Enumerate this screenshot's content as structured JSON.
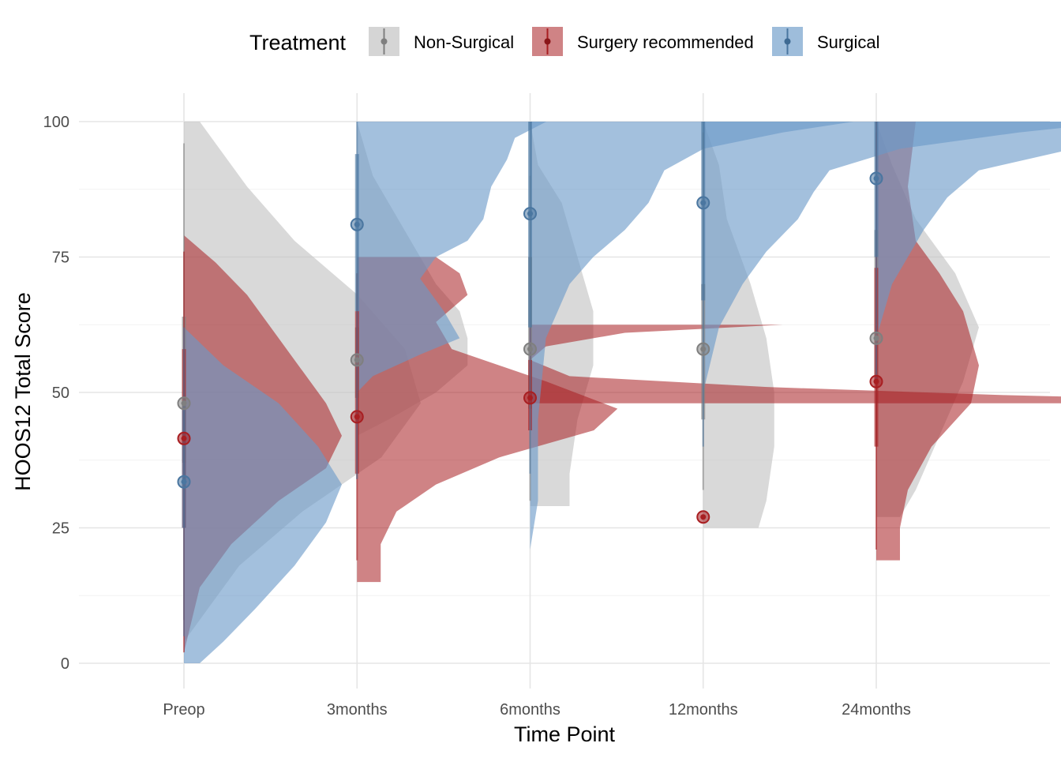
{
  "chart_data": {
    "type": "half-violin with point-interval",
    "xlabel": "Time Point",
    "ylabel": "HOOS12 Total Score",
    "categories": [
      "Preop",
      "3months",
      "6months",
      "12months",
      "24months"
    ],
    "ylim": [
      -4,
      105
    ],
    "yticks": [
      0,
      25,
      50,
      75,
      100
    ],
    "grid": true,
    "legend": {
      "title": "Treatment",
      "position": "top",
      "entries": [
        "Non-Surgical",
        "Surgery recommended",
        "Surgical"
      ]
    },
    "series": [
      {
        "name": "Non-Surgical",
        "color": "#bfbfbf",
        "point_color": "#7f7f7f",
        "medians": [
          48,
          56,
          58,
          58,
          60
        ],
        "interval_66": [
          [
            37,
            64
          ],
          [
            49,
            62
          ],
          [
            47,
            75
          ],
          [
            45,
            70
          ],
          [
            52,
            80
          ]
        ],
        "interval_95": [
          [
            8,
            96
          ],
          [
            34,
            72
          ],
          [
            30,
            90
          ],
          [
            32,
            98
          ],
          [
            40,
            98
          ]
        ],
        "density": [
          [
            [
              100,
              0.02
            ],
            [
              96,
              0.04
            ],
            [
              88,
              0.08
            ],
            [
              78,
              0.14
            ],
            [
              68,
              0.22
            ],
            [
              58,
              0.28
            ],
            [
              48,
              0.3
            ],
            [
              38,
              0.25
            ],
            [
              28,
              0.15
            ],
            [
              18,
              0.07
            ],
            [
              8,
              0.02
            ],
            [
              4,
              0
            ]
          ],
          [
            [
              100,
              0
            ],
            [
              90,
              0.02
            ],
            [
              80,
              0.06
            ],
            [
              70,
              0.1
            ],
            [
              65,
              0.13
            ],
            [
              60,
              0.14
            ],
            [
              55,
              0.14
            ],
            [
              50,
              0.1
            ],
            [
              45,
              0.04
            ],
            [
              42,
              0
            ]
          ],
          [
            [
              100,
              0
            ],
            [
              92,
              0.01
            ],
            [
              85,
              0.04
            ],
            [
              75,
              0.06
            ],
            [
              65,
              0.08
            ],
            [
              55,
              0.08
            ],
            [
              45,
              0.06
            ],
            [
              35,
              0.05
            ],
            [
              29,
              0.05
            ]
          ],
          [
            [
              100,
              0
            ],
            [
              92,
              0.02
            ],
            [
              82,
              0.03
            ],
            [
              70,
              0.06
            ],
            [
              60,
              0.08
            ],
            [
              50,
              0.09
            ],
            [
              40,
              0.09
            ],
            [
              30,
              0.08
            ],
            [
              25,
              0.07
            ]
          ],
          [
            [
              100,
              0
            ],
            [
              92,
              0.02
            ],
            [
              82,
              0.05
            ],
            [
              72,
              0.1
            ],
            [
              62,
              0.13
            ],
            [
              52,
              0.11
            ],
            [
              42,
              0.08
            ],
            [
              32,
              0.05
            ],
            [
              27,
              0.03
            ]
          ]
        ]
      },
      {
        "name": "Surgery recommended",
        "color": "#a81e21",
        "point_color": "#a81e21",
        "medians": [
          41.5,
          45.5,
          49,
          27,
          52
        ],
        "interval_66": [
          [
            25,
            58
          ],
          [
            35,
            65
          ],
          [
            43,
            56
          ],
          [
            27,
            27
          ],
          [
            40,
            73
          ]
        ],
        "interval_95": [
          [
            2,
            76
          ],
          [
            19,
            72
          ],
          [
            48,
            62
          ],
          [
            27,
            27
          ],
          [
            21,
            100
          ]
        ],
        "density": [
          [
            [
              79,
              0
            ],
            [
              74,
              0.04
            ],
            [
              68,
              0.08
            ],
            [
              60,
              0.12
            ],
            [
              54,
              0.15
            ],
            [
              48,
              0.18
            ],
            [
              42,
              0.2
            ],
            [
              36,
              0.18
            ],
            [
              30,
              0.12
            ],
            [
              22,
              0.06
            ],
            [
              14,
              0.02
            ],
            [
              2,
              0
            ]
          ],
          [
            [
              75,
              0.1
            ],
            [
              72,
              0.13
            ],
            [
              68,
              0.14
            ],
            [
              63,
              0.1
            ],
            [
              58,
              0.12
            ],
            [
              52,
              0.24
            ],
            [
              47,
              0.33
            ],
            [
              43,
              0.3
            ],
            [
              38,
              0.18
            ],
            [
              33,
              0.1
            ],
            [
              28,
              0.05
            ],
            [
              22,
              0.03
            ],
            [
              15,
              0.03
            ]
          ],
          [
            [
              62.5,
              0.32
            ],
            [
              61,
              0.12
            ],
            [
              58.5,
              0.02
            ],
            [
              56,
              0
            ],
            [
              53,
              0.05
            ],
            [
              51,
              0.3
            ],
            [
              49.5,
              0.6
            ],
            [
              48.5,
              0.9
            ],
            [
              48,
              0.9
            ],
            [
              48,
              0
            ]
          ],
          [],
          [
            [
              100,
              0.05
            ],
            [
              88,
              0.04
            ],
            [
              78,
              0.05
            ],
            [
              72,
              0.08
            ],
            [
              65,
              0.11
            ],
            [
              55,
              0.13
            ],
            [
              48,
              0.12
            ],
            [
              40,
              0.07
            ],
            [
              32,
              0.04
            ],
            [
              25,
              0.03
            ],
            [
              19,
              0.03
            ]
          ]
        ]
      },
      {
        "name": "Surgical",
        "color": "#6a9ac8",
        "point_color": "#4a76a0",
        "medians": [
          33.5,
          81,
          83,
          85,
          89.5
        ],
        "interval_66": [
          [
            25,
            48
          ],
          [
            65,
            94
          ],
          [
            62,
            100
          ],
          [
            67,
            100
          ],
          [
            75,
            100
          ]
        ],
        "interval_95": [
          [
            5,
            62
          ],
          [
            34,
            100
          ],
          [
            35,
            100
          ],
          [
            40,
            100
          ],
          [
            52,
            100
          ]
        ],
        "density": [
          [
            [
              62,
              0
            ],
            [
              55,
              0.05
            ],
            [
              48,
              0.12
            ],
            [
              40,
              0.17
            ],
            [
              33,
              0.2
            ],
            [
              26,
              0.18
            ],
            [
              18,
              0.14
            ],
            [
              10,
              0.09
            ],
            [
              4,
              0.05
            ],
            [
              0,
              0.02
            ]
          ],
          [
            [
              100,
              0.24
            ],
            [
              97,
              0.2
            ],
            [
              93,
              0.19
            ],
            [
              88,
              0.17
            ],
            [
              82,
              0.16
            ],
            [
              78,
              0.14
            ],
            [
              75,
              0.1
            ],
            [
              71,
              0.08
            ],
            [
              65,
              0.11
            ],
            [
              60,
              0.13
            ],
            [
              57,
              0.08
            ],
            [
              53,
              0.02
            ],
            [
              50,
              0
            ]
          ],
          [
            [
              100,
              0.41
            ],
            [
              98,
              0.32
            ],
            [
              95,
              0.22
            ],
            [
              91,
              0.17
            ],
            [
              85,
              0.15
            ],
            [
              80,
              0.12
            ],
            [
              75,
              0.08
            ],
            [
              70,
              0.05
            ],
            [
              60,
              0.02
            ],
            [
              45,
              0.01
            ],
            [
              30,
              0.01
            ],
            [
              21,
              0
            ]
          ],
          [
            [
              100,
              0.53
            ],
            [
              98,
              0.4
            ],
            [
              95,
              0.25
            ],
            [
              91,
              0.16
            ],
            [
              87,
              0.14
            ],
            [
              82,
              0.12
            ],
            [
              76,
              0.08
            ],
            [
              70,
              0.05
            ],
            [
              62,
              0.02
            ],
            [
              50,
              0
            ]
          ],
          [
            [
              100,
              0.55
            ],
            [
              98,
              0.4
            ],
            [
              95,
              0.25
            ],
            [
              91,
              0.13
            ],
            [
              86,
              0.09
            ],
            [
              80,
              0.06
            ],
            [
              75,
              0.04
            ],
            [
              70,
              0.02
            ],
            [
              60,
              0
            ]
          ]
        ]
      }
    ]
  }
}
